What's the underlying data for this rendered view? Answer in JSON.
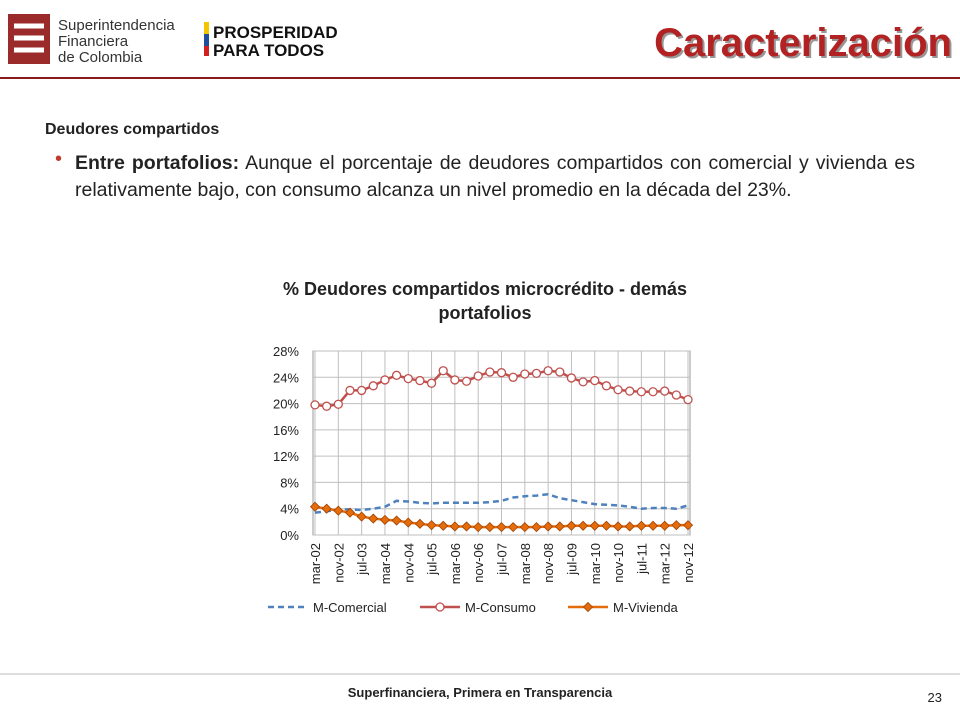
{
  "header": {
    "org_lines": [
      "Superintendencia",
      "Financiera",
      "de Colombia"
    ],
    "slogan_lines": [
      "PROSPERIDAD",
      "PARA TODOS"
    ],
    "title": "Caracterización"
  },
  "body": {
    "subheading": "Deudores compartidos",
    "bullet_lead": "Entre portafolios:",
    "bullet_text": "Aunque el porcentaje de deudores compartidos con comercial y vivienda es relativamente bajo, con consumo alcanza un nivel promedio en la década del 23%."
  },
  "chart_data": {
    "type": "line",
    "title": "% Deudores compartidos microcrédito - demás portafolios",
    "categories": [
      "mar-02",
      null,
      "nov-02",
      null,
      "jul-03",
      null,
      "mar-04",
      null,
      "nov-04",
      null,
      "jul-05",
      null,
      "mar-06",
      null,
      "nov-06",
      null,
      "jul-07",
      null,
      "mar-08",
      null,
      "nov-08",
      null,
      "jul-09",
      null,
      "mar-10",
      null,
      "nov-10",
      null,
      "jul-11",
      null,
      "mar-12",
      null,
      "nov-12"
    ],
    "series": [
      {
        "name": "M-Comercial",
        "color": "#4f81bd",
        "values": [
          3.4,
          3.6,
          3.9,
          3.9,
          3.8,
          4.0,
          4.3,
          5.2,
          5.1,
          4.9,
          4.8,
          4.9,
          4.9,
          4.9,
          4.9,
          5.0,
          5.2,
          5.7,
          5.9,
          6.0,
          6.2,
          5.6,
          5.3,
          5.0,
          4.7,
          4.6,
          4.5,
          4.3,
          4.0,
          4.1,
          4.1,
          4.0,
          4.5
        ]
      },
      {
        "name": "M-Consumo",
        "color": "#c0504d",
        "values": [
          19.8,
          19.6,
          19.9,
          22.0,
          22.0,
          22.7,
          23.6,
          24.3,
          23.8,
          23.5,
          23.1,
          25.0,
          23.6,
          23.4,
          24.2,
          24.8,
          24.7,
          24.0,
          24.5,
          24.6,
          25.0,
          24.8,
          23.9,
          23.3,
          23.5,
          22.7,
          22.1,
          21.9,
          21.8,
          21.8,
          21.9,
          21.3,
          20.6
        ]
      },
      {
        "name": "M-Vivienda",
        "color": "#e46c0a",
        "values": [
          4.3,
          4.0,
          3.7,
          3.4,
          2.8,
          2.5,
          2.3,
          2.2,
          1.9,
          1.7,
          1.5,
          1.4,
          1.3,
          1.3,
          1.2,
          1.2,
          1.2,
          1.2,
          1.2,
          1.2,
          1.3,
          1.3,
          1.4,
          1.4,
          1.4,
          1.4,
          1.3,
          1.3,
          1.4,
          1.4,
          1.4,
          1.5,
          1.5
        ]
      }
    ],
    "ylim": [
      0,
      28
    ],
    "yticks": [
      {
        "value": 0,
        "label": "0%"
      },
      {
        "value": 4,
        "label": "4%"
      },
      {
        "value": 8,
        "label": "8%"
      },
      {
        "value": 12,
        "label": "12%"
      },
      {
        "value": 16,
        "label": "16%"
      },
      {
        "value": 20,
        "label": "20%"
      },
      {
        "value": 24,
        "label": "24%"
      },
      {
        "value": 28,
        "label": "28%"
      }
    ],
    "grid": true,
    "legend": "bottom"
  },
  "footer": {
    "text": "Superfinanciera, Primera en Transparencia",
    "page": "23"
  }
}
